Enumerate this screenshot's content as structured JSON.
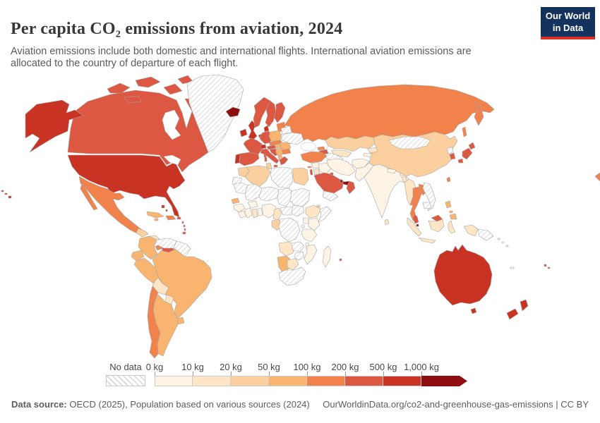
{
  "header": {
    "title": "Per capita CO₂ emissions from aviation, 2024",
    "subtitle": "Aviation emissions include both domestic and international flights. International aviation emissions are allocated to the country of departure of each flight.",
    "logo": {
      "line1": "Our World",
      "line2": "in Data",
      "bg_color": "#13335e",
      "accent_color": "#dc2e27"
    }
  },
  "legend": {
    "no_data_label": "No data",
    "tick_labels": [
      "0 kg",
      "10 kg",
      "20 kg",
      "50 kg",
      "100 kg",
      "200 kg",
      "500 kg",
      "1,000 kg"
    ]
  },
  "footer": {
    "source_label": "Data source:",
    "source_text": "OECD (2025), Population based on various sources (2024)",
    "credit": "OurWorldinData.org/co2-and-greenhouse-gas-emissions | CC BY"
  },
  "chart_data": {
    "type": "choropleth",
    "title": "Per capita CO₂ emissions from aviation, 2024",
    "unit": "kg CO₂ per person per year",
    "legend_position": "bottom",
    "legend_bins": [
      {
        "range": "0-10 kg",
        "color": "#fef4e6"
      },
      {
        "range": "10-20 kg",
        "color": "#fde5c5"
      },
      {
        "range": "20-50 kg",
        "color": "#fbd09e"
      },
      {
        "range": "50-100 kg",
        "color": "#f9b470"
      },
      {
        "range": "100-200 kg",
        "color": "#f2824b"
      },
      {
        "range": "200-500 kg",
        "color": "#dd5843"
      },
      {
        "range": "500-1,000 kg",
        "color": "#c93324"
      },
      {
        "range": "1,000+ kg",
        "color": "#8e0e10"
      }
    ],
    "no_data": {
      "label": "No data",
      "fill": "hatched",
      "hatch_color": "#cfcfcf"
    },
    "countries": {
      "United States": "500-1,000 kg",
      "Canada": "200-500 kg",
      "Greenland": "no-data",
      "Iceland": "1,000+ kg",
      "Mexico": "100-200 kg",
      "Guatemala": "20-50 kg",
      "Honduras": "10-20 kg",
      "Nicaragua": "10-20 kg",
      "Costa Rica": "100-200 kg",
      "Panama": "200-500 kg",
      "Cuba": "50-100 kg",
      "Bahamas": "500-1,000 kg",
      "Dominican Republic": "100-200 kg",
      "Jamaica": "50-100 kg",
      "Puerto Rico": "200-500 kg",
      "Lesser Antilles": "200-500 kg",
      "Trinidad and Tobago": "200-500 kg",
      "Colombia": "50-100 kg",
      "Venezuela": "no-data",
      "Guyana": "no-data",
      "Suriname": "no-data",
      "Ecuador": "50-100 kg",
      "Peru": "50-100 kg",
      "Brazil": "50-100 kg",
      "Bolivia": "10-20 kg",
      "Paraguay": "10-20 kg",
      "Uruguay": "50-100 kg",
      "Argentina": "50-100 kg",
      "Chile": "100-200 kg",
      "Ireland": "500-1,000 kg",
      "United Kingdom": "500-1,000 kg",
      "Portugal": "500-1,000 kg",
      "Spain": "200-500 kg",
      "France": "200-500 kg",
      "Netherlands": "500-1,000 kg",
      "Germany": "200-500 kg",
      "Denmark": "500-1,000 kg",
      "Norway": "200-500 kg",
      "Sweden": "200-500 kg",
      "Finland": "200-500 kg",
      "Baltic states": "100-200 kg",
      "Poland": "50-100 kg",
      "Czechia": "100-200 kg",
      "Austria": "200-500 kg",
      "Switzerland": "500-1,000 kg",
      "Italy": "200-500 kg",
      "Croatia": "200-500 kg",
      "Serbia": "50-100 kg",
      "Hungary": "50-100 kg",
      "Slovakia": "100-200 kg",
      "Romania": "50-100 kg",
      "Bulgaria": "100-200 kg",
      "Albania": "50-100 kg",
      "Greece": "200-500 kg",
      "Moldova": "20-50 kg",
      "Belarus": "no-data",
      "Ukraine": "no-data",
      "Russia": "100-200 kg",
      "Kazakhstan": "20-50 kg",
      "Uzbekistan": "10-20 kg",
      "Turkmenistan": "no-data",
      "Kyrgyzstan": "10-20 kg",
      "Tajikistan": "0-10 kg",
      "Georgia": "100-200 kg",
      "Armenia": "200-500 kg",
      "Azerbaijan": "200-500 kg",
      "Turkey": "100-200 kg",
      "Cyprus": "100-200 kg",
      "Syria": "0-10 kg",
      "Israel": "200-500 kg",
      "Jordan": "10-20 kg",
      "Iraq": "0-10 kg",
      "Iran": "0-10 kg",
      "Afghanistan": "0-10 kg",
      "Pakistan": "0-10 kg",
      "Saudi Arabia": "200-500 kg",
      "Kuwait": "200-500 kg",
      "Qatar": "1,000+ kg",
      "United Arab Emirates": "1,000+ kg",
      "Oman": "200-500 kg",
      "Yemen": "no-data",
      "India": "0-10 kg",
      "Nepal": "0-10 kg",
      "Bhutan": "10-20 kg",
      "Bangladesh": "10-20 kg",
      "Sri Lanka": "10-20 kg",
      "China": "20-50 kg",
      "Mongolia": "no-data",
      "North Korea": "no-data",
      "South Korea": "200-500 kg",
      "Japan": "200-500 kg",
      "Taiwan": "100-200 kg",
      "Myanmar": "10-20 kg",
      "Thailand": "100-200 kg",
      "Laos": "100-200 kg",
      "Vietnam": "no-data",
      "Cambodia": "no-data",
      "Malaysia": "200-500 kg",
      "Singapore": "1,000+ kg",
      "Indonesia": "10-20 kg",
      "Papua New Guinea": "no-data",
      "Philippines": "50-100 kg",
      "Australia": "500-1,000 kg",
      "New Zealand": "500-1,000 kg",
      "Solomon Islands": "no-data",
      "New Caledonia": "no-data",
      "Fiji": "200-500 kg",
      "Morocco": "20-50 kg",
      "Western Sahara": "no-data",
      "Algeria": "20-50 kg",
      "Tunisia": "20-50 kg",
      "Libya": "no-data",
      "Egypt": "20-50 kg",
      "Mauritania": "no-data",
      "Mali": "no-data",
      "Niger": "no-data",
      "Chad": "no-data",
      "Sudan": "no-data",
      "Senegal": "50-100 kg",
      "Guinea": "0-10 kg",
      "Sierra Leone": "0-10 kg",
      "Liberia": "0-10 kg",
      "Ivory Coast": "0-10 kg",
      "Ghana": "10-20 kg",
      "Benin": "0-10 kg",
      "Burkina Faso": "0-10 kg",
      "Nigeria": "0-10 kg",
      "Cameroon": "10-20 kg",
      "Central African Republic": "no-data",
      "South Sudan": "no-data",
      "Ethiopia": "10-20 kg",
      "Djibouti": "20-50 kg",
      "Somalia": "no-data",
      "Kenya": "0-10 kg",
      "Uganda": "0-10 kg",
      "Rwanda": "0-10 kg",
      "Gabon": "20-50 kg",
      "Democratic Republic of Congo": "no-data",
      "Tanzania": "0-10 kg",
      "Angola": "10-20 kg",
      "Zambia": "no-data",
      "Malawi": "0-10 kg",
      "Mozambique": "0-10 kg",
      "Zimbabwe": "no-data",
      "Namibia": "50-100 kg",
      "Botswana": "10-20 kg",
      "South Africa": "no-data",
      "Madagascar": "0-10 kg",
      "Mauritius": "200-500 kg"
    }
  }
}
